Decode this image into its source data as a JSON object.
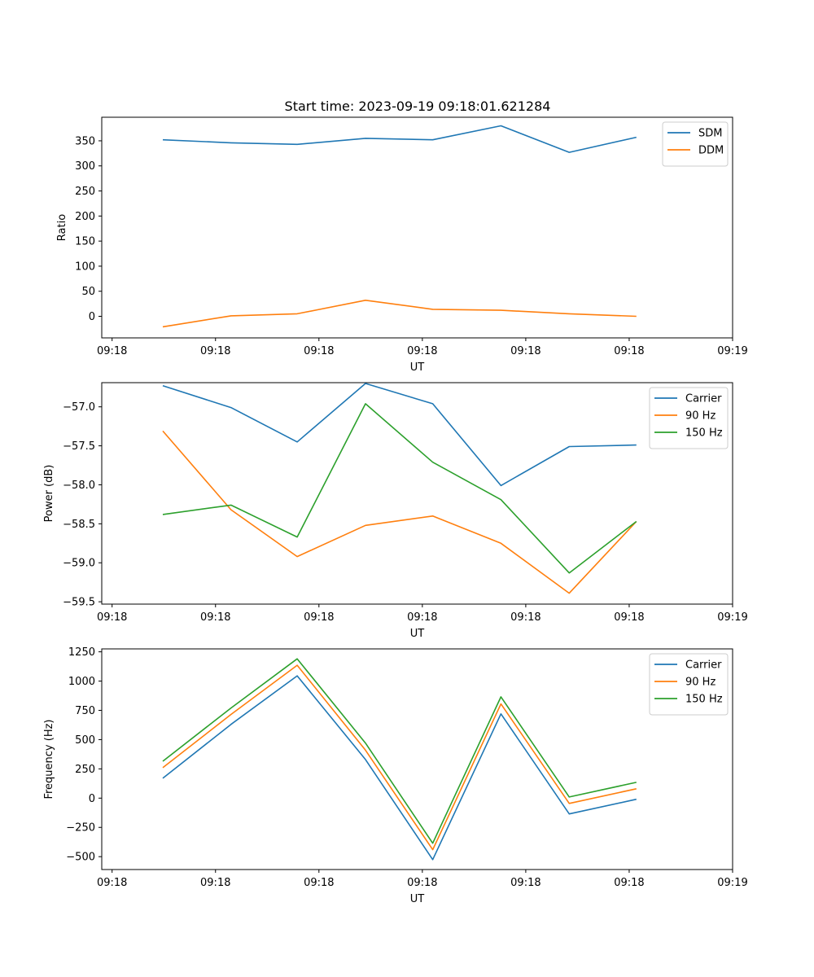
{
  "figure_title": "Start time: 2023-09-19 09:18:01.621284",
  "colors": {
    "blue": "#1f77b4",
    "orange": "#ff7f0e",
    "green": "#2ca02c"
  },
  "chart_data": [
    {
      "type": "line",
      "xlabel": "UT",
      "ylabel": "Ratio",
      "x_ticks": [
        "09:18",
        "09:18",
        "09:18",
        "09:18",
        "09:18",
        "09:18",
        "09:19"
      ],
      "x_tick_pos": [
        0,
        1,
        2,
        3,
        4,
        5,
        6
      ],
      "xlim": [
        -0.1,
        6.0
      ],
      "x": [
        0.49,
        1.15,
        1.79,
        2.45,
        3.1,
        3.76,
        4.42,
        5.07
      ],
      "ylim": [
        -43,
        397
      ],
      "y_ticks": [
        0,
        50,
        100,
        150,
        200,
        250,
        300,
        350
      ],
      "y_tick_labels": [
        "0",
        "50",
        "100",
        "150",
        "200",
        "250",
        "300",
        "350"
      ],
      "series": [
        {
          "name": "SDM",
          "color": "#1f77b4",
          "values": [
            352,
            346,
            343,
            355,
            352,
            380,
            327,
            357
          ]
        },
        {
          "name": "DDM",
          "color": "#ff7f0e",
          "values": [
            -21,
            1,
            5,
            32,
            14,
            12,
            5,
            0
          ]
        }
      ],
      "legend": "top-right"
    },
    {
      "type": "line",
      "xlabel": "UT",
      "ylabel": "Power (dB)",
      "x_ticks": [
        "09:18",
        "09:18",
        "09:18",
        "09:18",
        "09:18",
        "09:18",
        "09:19"
      ],
      "x_tick_pos": [
        0,
        1,
        2,
        3,
        4,
        5,
        6
      ],
      "xlim": [
        -0.1,
        6.0
      ],
      "x": [
        0.49,
        1.15,
        1.79,
        2.45,
        3.1,
        3.76,
        4.42,
        5.07
      ],
      "ylim": [
        -59.53,
        -56.69
      ],
      "y_ticks": [
        -57.0,
        -57.5,
        -58.0,
        -58.5,
        -59.0,
        -59.5
      ],
      "y_tick_labels": [
        "−57.0",
        "−57.5",
        "−58.0",
        "−58.5",
        "−59.0",
        "−59.5"
      ],
      "series": [
        {
          "name": "Carrier",
          "color": "#1f77b4",
          "values": [
            -56.73,
            -57.01,
            -57.45,
            -56.7,
            -56.96,
            -58.01,
            -57.51,
            -57.49
          ]
        },
        {
          "name": "90 Hz",
          "color": "#ff7f0e",
          "values": [
            -57.31,
            -58.32,
            -58.92,
            -58.52,
            -58.4,
            -58.75,
            -59.39,
            -58.47
          ]
        },
        {
          "name": "150 Hz",
          "color": "#2ca02c",
          "values": [
            -58.38,
            -58.26,
            -58.67,
            -56.96,
            -57.71,
            -58.19,
            -59.13,
            -58.47
          ]
        }
      ],
      "legend": "top-right"
    },
    {
      "type": "line",
      "xlabel": "UT",
      "ylabel": "Frequency (Hz)",
      "x_ticks": [
        "09:18",
        "09:18",
        "09:18",
        "09:18",
        "09:18",
        "09:18",
        "09:19"
      ],
      "x_tick_pos": [
        0,
        1,
        2,
        3,
        4,
        5,
        6
      ],
      "xlim": [
        -0.1,
        6.0
      ],
      "x": [
        0.49,
        1.15,
        1.79,
        2.45,
        3.1,
        3.76,
        4.42,
        5.07
      ],
      "ylim": [
        -610,
        1275
      ],
      "y_ticks": [
        1250,
        1000,
        750,
        500,
        250,
        0,
        -250,
        -500
      ],
      "y_tick_labels": [
        "1250",
        "1000",
        "750",
        "500",
        "250",
        "0",
        "−250",
        "−500"
      ],
      "series": [
        {
          "name": "Carrier",
          "color": "#1f77b4",
          "values": [
            170,
            630,
            1045,
            330,
            -525,
            720,
            -135,
            -10
          ]
        },
        {
          "name": "90 Hz",
          "color": "#ff7f0e",
          "values": [
            260,
            715,
            1135,
            410,
            -440,
            805,
            -45,
            80
          ]
        },
        {
          "name": "150 Hz",
          "color": "#2ca02c",
          "values": [
            315,
            770,
            1190,
            470,
            -385,
            865,
            10,
            135
          ]
        }
      ],
      "legend": "top-right"
    }
  ]
}
